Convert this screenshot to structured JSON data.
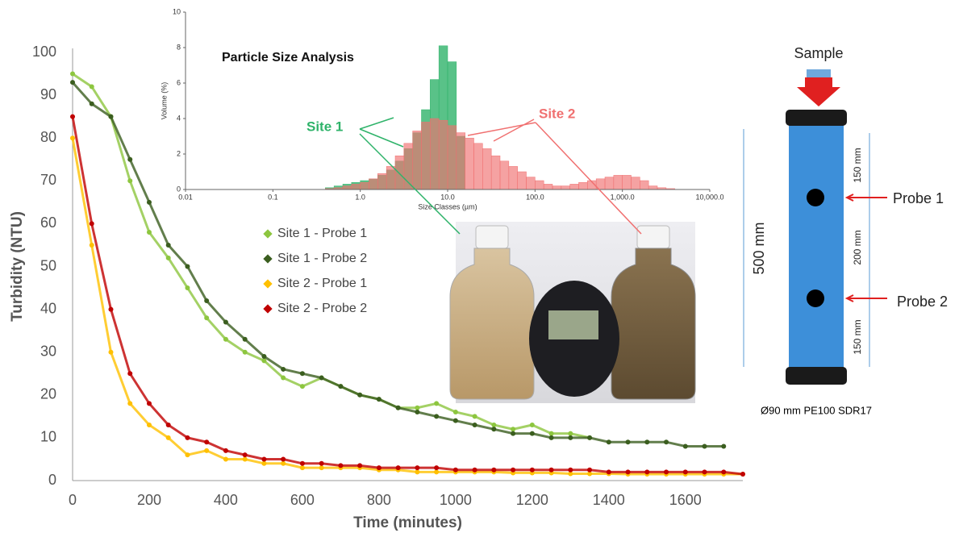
{
  "chart_data": [
    {
      "type": "scatter",
      "xlabel": "Time (minutes)",
      "ylabel": "Turbidity (NTU)",
      "x": [
        0,
        50,
        100,
        150,
        200,
        250,
        300,
        350,
        400,
        450,
        500,
        550,
        600,
        650,
        700,
        750,
        800,
        850,
        900,
        950,
        1000,
        1050,
        1100,
        1150,
        1200,
        1250,
        1300,
        1350,
        1400,
        1450,
        1500,
        1550,
        1600,
        1650,
        1700,
        1750
      ],
      "series": [
        {
          "name": "Site 1 - Probe 1",
          "color": "#8dc63f",
          "values": [
            95,
            92,
            85,
            70,
            58,
            52,
            45,
            38,
            33,
            30,
            28,
            24,
            22,
            24,
            22,
            20,
            19,
            17,
            17,
            18,
            16,
            15,
            13,
            12,
            13,
            11,
            11,
            10,
            null,
            null,
            null,
            null,
            null,
            null,
            null,
            null
          ]
        },
        {
          "name": "Site 1 - Probe 2",
          "color": "#3b5e1f",
          "values": [
            93,
            88,
            85,
            75,
            65,
            55,
            50,
            42,
            37,
            33,
            29,
            26,
            25,
            24,
            22,
            20,
            19,
            17,
            16,
            15,
            14,
            13,
            12,
            11,
            11,
            10,
            10,
            10,
            9,
            9,
            9,
            9,
            8,
            8,
            8,
            null
          ]
        },
        {
          "name": "Site 2 - Probe 1",
          "color": "#ffc000",
          "values": [
            80,
            55,
            30,
            18,
            13,
            10,
            6,
            7,
            5,
            5,
            4,
            4,
            3,
            3,
            3,
            3,
            2.5,
            2.5,
            2,
            2,
            2,
            2,
            2,
            1.8,
            1.8,
            1.8,
            1.6,
            1.6,
            1.6,
            1.5,
            1.5,
            1.5,
            1.5,
            1.5,
            1.5,
            1.5
          ]
        },
        {
          "name": "Site 2 - Probe 2",
          "color": "#c00000",
          "values": [
            85,
            60,
            40,
            25,
            18,
            13,
            10,
            9,
            7,
            6,
            5,
            5,
            4,
            4,
            3.5,
            3.5,
            3,
            3,
            3,
            3,
            2.5,
            2.5,
            2.5,
            2.5,
            2.5,
            2.5,
            2.5,
            2.5,
            2,
            2,
            2,
            2,
            2,
            2,
            2,
            1.5
          ]
        }
      ],
      "xlim": [
        0,
        1750
      ],
      "xticks": [
        0,
        200,
        400,
        600,
        800,
        1000,
        1200,
        1400,
        1600
      ],
      "ylim": [
        0,
        100
      ],
      "yticks": [
        0,
        10,
        20,
        30,
        40,
        50,
        60,
        70,
        80,
        90,
        100
      ],
      "grid": false,
      "legend": "center"
    },
    {
      "type": "histogram",
      "title": "Particle Size Analysis",
      "xlabel": "Size Classes (µm)",
      "ylabel": "Volume (%)",
      "xscale": "log",
      "bins": [
        0.398,
        0.501,
        0.631,
        0.794,
        1,
        1.259,
        1.585,
        1.995,
        2.512,
        3.162,
        3.981,
        5.012,
        6.31,
        7.943,
        10,
        12.59,
        15.85,
        19.95,
        25.12,
        31.62,
        39.81,
        50.12,
        63.1,
        79.43,
        100,
        125.9,
        158.5,
        199.5,
        251.2,
        316.2,
        398.1,
        501.2,
        631,
        794.3,
        1000,
        1259,
        1585,
        1995,
        2512,
        3162,
        3981
      ],
      "series": [
        {
          "name": "Site 1",
          "color": "#2fb36a",
          "values": [
            0.1,
            0.2,
            0.3,
            0.4,
            0.5,
            0.6,
            0.8,
            1.1,
            1.6,
            2.3,
            3.2,
            4.5,
            6.2,
            8.1,
            7.2,
            3.0,
            0,
            0,
            0,
            0,
            0,
            0,
            0,
            0,
            0,
            0,
            0,
            0,
            0,
            0,
            0,
            0,
            0,
            0,
            0,
            0,
            0,
            0,
            0,
            0
          ]
        },
        {
          "name": "Site 2",
          "color": "#f07070",
          "values": [
            0.05,
            0.1,
            0.2,
            0.3,
            0.4,
            0.6,
            0.9,
            1.3,
            1.9,
            2.6,
            3.3,
            3.8,
            4.0,
            3.9,
            3.6,
            3.2,
            2.9,
            2.6,
            2.3,
            1.9,
            1.6,
            1.3,
            1.0,
            0.7,
            0.5,
            0.3,
            0.2,
            0.2,
            0.3,
            0.4,
            0.5,
            0.6,
            0.7,
            0.8,
            0.8,
            0.7,
            0.5,
            0.2,
            0.1,
            0.05
          ]
        }
      ],
      "xlim": [
        0.01,
        10000
      ],
      "xticks": [
        0.01,
        0.1,
        {
          "value": 1,
          "label": "1.0"
        },
        {
          "value": 10,
          "label": "10.0"
        },
        {
          "value": 100,
          "label": "100.0"
        },
        {
          "value": 1000,
          "label": "1,000.0"
        },
        {
          "value": 10000,
          "label": "10,000.0"
        }
      ],
      "ylim": [
        0,
        10
      ],
      "yticks": [
        0,
        2,
        4,
        6,
        8,
        10
      ]
    }
  ],
  "diagram": {
    "sample": "Sample",
    "height": "500 mm",
    "segments": [
      "150 mm",
      "200 mm",
      "150 mm"
    ],
    "probes": [
      "Probe 1",
      "Probe 2"
    ],
    "pipe": "Ø90 mm PE100 SDR17"
  }
}
